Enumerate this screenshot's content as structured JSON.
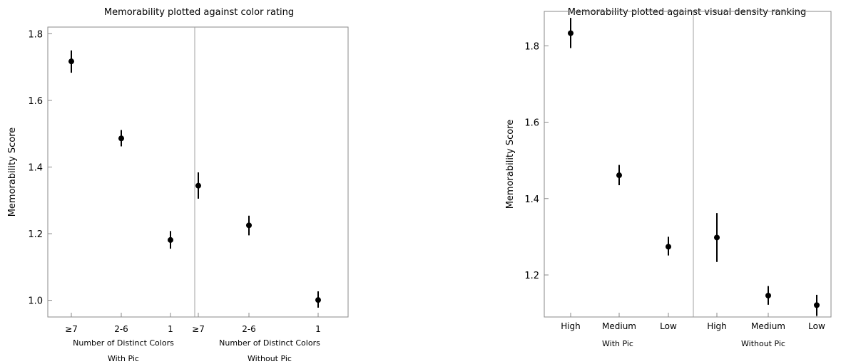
{
  "chart_data": [
    {
      "type": "scatter",
      "title": "Memorability plotted against color rating",
      "ylabel": "Memorability Score",
      "ylim": [
        0.95,
        1.82
      ],
      "yticks": [
        1.0,
        1.2,
        1.4,
        1.6,
        1.8
      ],
      "ytick_labels": [
        "1.0",
        "1.2",
        "1.4",
        "1.6",
        "1.8"
      ],
      "panels": [
        {
          "group": "With Pic",
          "xlabel": "Number of Distinct Colors",
          "categories": [
            "≥7",
            "2-6",
            "1"
          ],
          "values": [
            1.717,
            1.486,
            1.181
          ],
          "err_low": [
            1.683,
            1.462,
            1.155
          ],
          "err_high": [
            1.75,
            1.511,
            1.208
          ]
        },
        {
          "group": "Without Pic",
          "xlabel": "Number of Distinct Colors",
          "categories": [
            "≥7",
            "2-6",
            "1"
          ],
          "values": [
            1.344,
            1.225,
            1.001
          ],
          "err_low": [
            1.305,
            1.195,
            0.978
          ],
          "err_high": [
            1.384,
            1.254,
            1.027
          ]
        }
      ]
    },
    {
      "type": "scatter",
      "title": "Memorability plotted against visual density ranking",
      "ylabel": "Memorability Score",
      "ylim": [
        1.09,
        1.89
      ],
      "yticks": [
        1.2,
        1.4,
        1.6,
        1.8
      ],
      "ytick_labels": [
        "1.2",
        "1.4",
        "1.6",
        "1.8"
      ],
      "panels": [
        {
          "group": "With Pic",
          "xlabel": "",
          "categories": [
            "High",
            "Medium",
            "Low"
          ],
          "values": [
            1.833,
            1.461,
            1.274
          ],
          "err_low": [
            1.794,
            1.435,
            1.251
          ],
          "err_high": [
            1.873,
            1.488,
            1.3
          ]
        },
        {
          "group": "Without Pic",
          "xlabel": "",
          "categories": [
            "High",
            "Medium",
            "Low"
          ],
          "values": [
            1.298,
            1.146,
            1.121
          ],
          "err_low": [
            1.234,
            1.122,
            1.093
          ],
          "err_high": [
            1.362,
            1.171,
            1.148
          ]
        }
      ]
    }
  ]
}
